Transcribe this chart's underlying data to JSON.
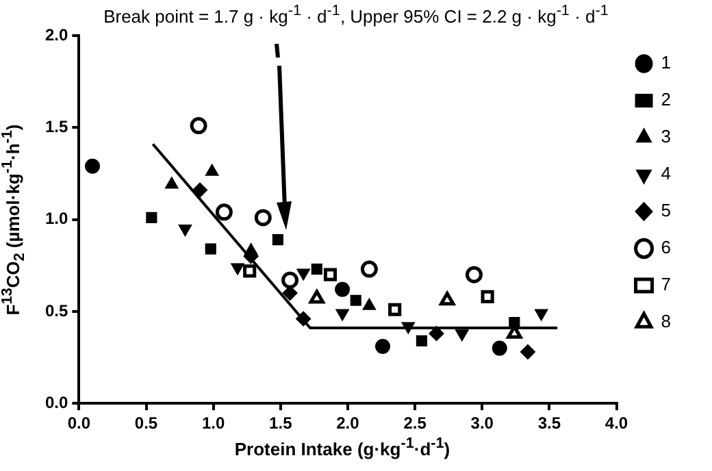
{
  "chart_data": {
    "type": "scatter",
    "title": "Break point = 1.7 g · kg$^{-1}$ · d$^{-1}$, Upper 95% CI = 2.2 g · kg$^{-1}$ · d$^{-1}$",
    "xlabel": "Protein Intake (g·kg$^{-1}$·d$^{-1}$)",
    "ylabel": "F$^{13}$CO$_{2}$ (µmol·kg$^{-1}$·h$^{-1}$)",
    "xlim": [
      0,
      4
    ],
    "xticks": [
      {
        "value": 0,
        "label": "0.0"
      },
      {
        "value": 0.5,
        "label": "0.5"
      },
      {
        "value": 1,
        "label": "1.0"
      },
      {
        "value": 1.5,
        "label": "1.5"
      },
      {
        "value": 2,
        "label": "2.0"
      },
      {
        "value": 2.5,
        "label": "2.5"
      },
      {
        "value": 3,
        "label": "3.0"
      },
      {
        "value": 3.5,
        "label": "3.5"
      },
      {
        "value": 4,
        "label": "4.0"
      }
    ],
    "ylim": [
      0,
      2
    ],
    "yticks": [
      {
        "value": 0,
        "label": "0.0"
      },
      {
        "value": 0.5,
        "label": "0.5"
      },
      {
        "value": 1,
        "label": "1.0"
      },
      {
        "value": 1.5,
        "label": "1.5"
      },
      {
        "value": 2,
        "label": "2.0"
      }
    ],
    "grid": false,
    "legend": "right",
    "series": [
      {
        "name": "1",
        "color": "#000000",
        "marker": "circle",
        "x": [
          0.1,
          1.96,
          2.26,
          3.13
        ],
        "values": [
          1.29,
          0.62,
          0.31,
          0.3
        ]
      },
      {
        "name": "2",
        "color": "#000000",
        "marker": "square",
        "x": [
          0.54,
          0.98,
          1.48,
          1.77,
          2.06,
          2.55,
          3.24
        ],
        "values": [
          1.01,
          0.84,
          0.89,
          0.73,
          0.56,
          0.34,
          0.44
        ]
      },
      {
        "name": "3",
        "color": "#000000",
        "marker": "triangle",
        "x": [
          0.69,
          0.99,
          1.28,
          2.16
        ],
        "values": [
          1.19,
          1.26,
          0.83,
          0.53
        ]
      },
      {
        "name": "4",
        "color": "#000000",
        "marker": "triangle-down",
        "x": [
          0.79,
          1.18,
          1.67,
          1.96,
          2.45,
          2.85,
          3.44
        ],
        "values": [
          0.95,
          0.74,
          0.71,
          0.49,
          0.42,
          0.38,
          0.49
        ]
      },
      {
        "name": "5",
        "color": "#000000",
        "marker": "diamond",
        "x": [
          0.9,
          1.28,
          1.57,
          1.67,
          2.66,
          3.34
        ],
        "values": [
          1.16,
          0.8,
          0.6,
          0.46,
          0.38,
          0.28
        ]
      },
      {
        "name": "6",
        "color": "#000000",
        "marker": "circle-open",
        "x": [
          0.89,
          1.08,
          1.37,
          1.57,
          2.16,
          2.94
        ],
        "values": [
          1.51,
          1.04,
          1.01,
          0.67,
          0.73,
          0.7
        ]
      },
      {
        "name": "7",
        "color": "#000000",
        "marker": "square-open",
        "x": [
          1.27,
          1.87,
          2.35,
          3.04
        ],
        "values": [
          0.72,
          0.7,
          0.51,
          0.58
        ]
      },
      {
        "name": "8",
        "color": "#000000",
        "marker": "triangle-open",
        "x": [
          1.77,
          2.74,
          3.24
        ],
        "values": [
          0.57,
          0.56,
          0.38
        ]
      },
      {
        "type": "line",
        "color": "#000000",
        "marker": "none",
        "x": [
          0.55,
          1.72,
          3.56
        ],
        "values": [
          1.41,
          0.41,
          0.41
        ]
      }
    ]
  }
}
